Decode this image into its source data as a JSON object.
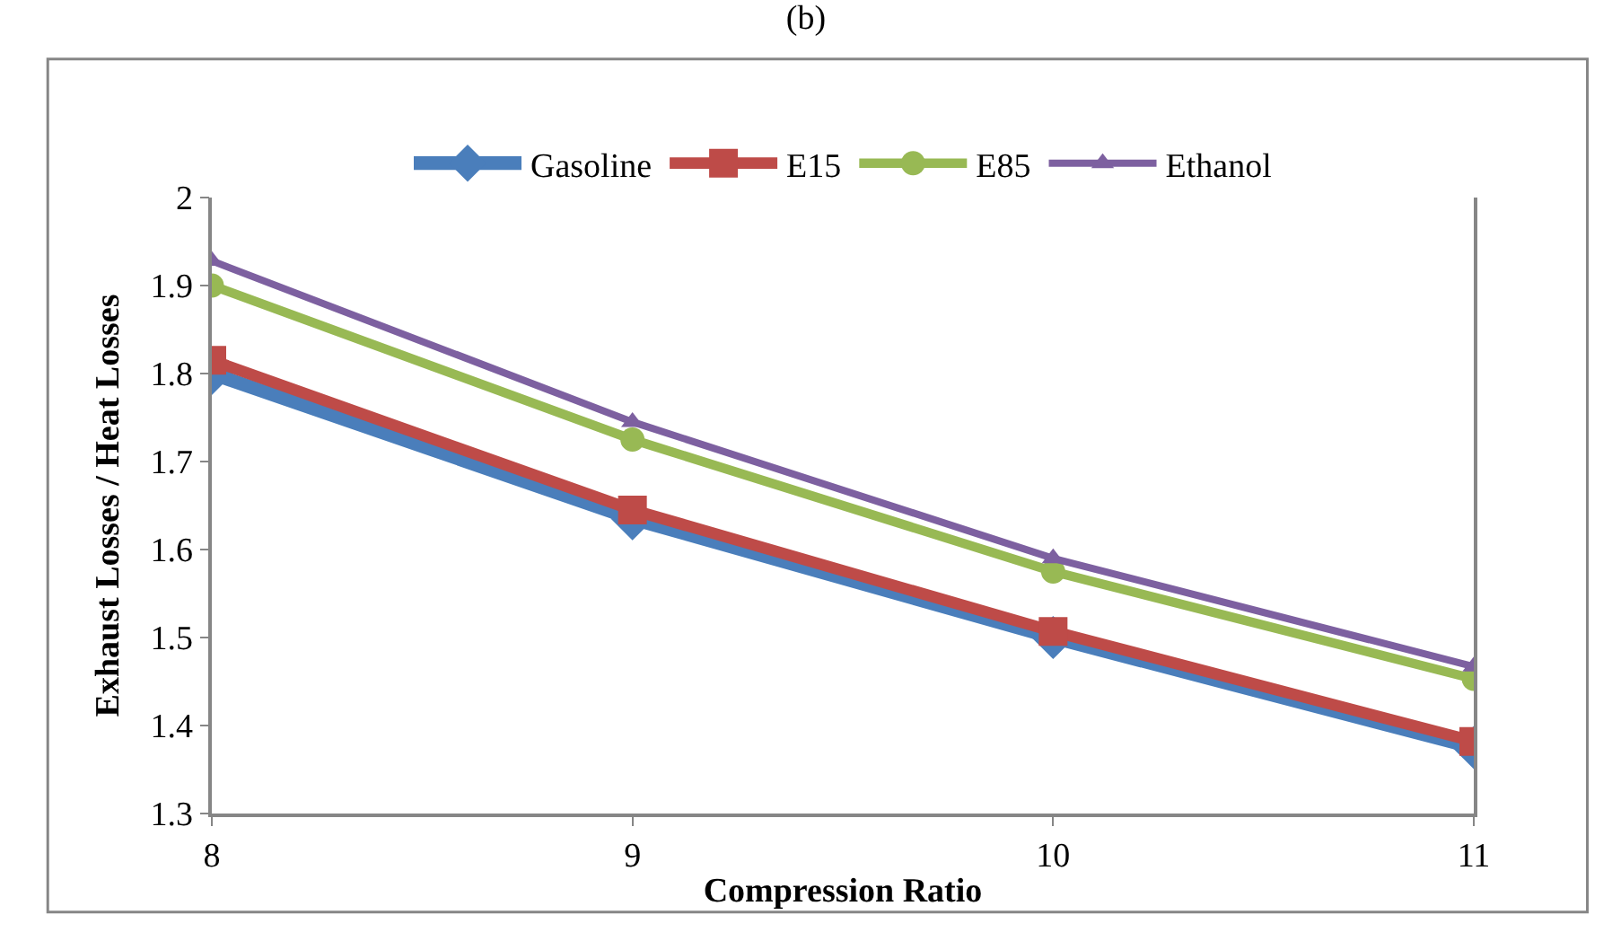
{
  "chart_data": {
    "type": "line",
    "title": "(b)",
    "xlabel": "Compression Ratio",
    "ylabel": "Exhaust Losses / Heat Losses",
    "x": [
      8,
      9,
      10,
      11
    ],
    "xlim": [
      8,
      11
    ],
    "xticks": [
      8,
      9,
      10,
      11
    ],
    "ylim": [
      1.3,
      2
    ],
    "yticks": [
      1.3,
      1.4,
      1.5,
      1.6,
      1.7,
      1.8,
      1.9,
      2
    ],
    "grid": false,
    "legend": "top",
    "line_style": "solid",
    "series": [
      {
        "name": "Gasoline",
        "color": "#4a7ebb",
        "marker": "diamond",
        "values": [
          1.8,
          1.635,
          1.5,
          1.375
        ]
      },
      {
        "name": "E15",
        "color": "#be4b48",
        "marker": "square",
        "values": [
          1.815,
          1.645,
          1.507,
          1.382
        ]
      },
      {
        "name": "E85",
        "color": "#98b954",
        "marker": "circle",
        "values": [
          1.9,
          1.725,
          1.575,
          1.453
        ]
      },
      {
        "name": "Ethanol",
        "color": "#7d60a0",
        "marker": "triangle",
        "values": [
          1.928,
          1.745,
          1.59,
          1.467
        ]
      }
    ]
  }
}
